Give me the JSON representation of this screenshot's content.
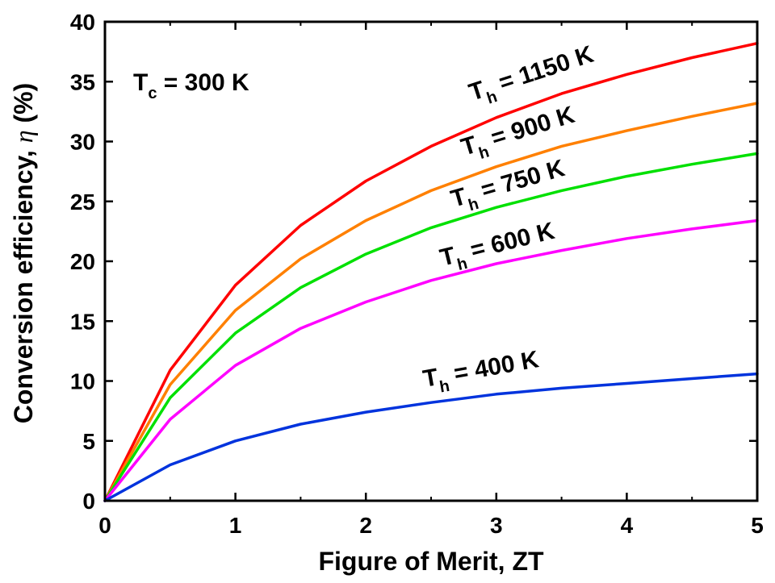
{
  "chart_data": {
    "type": "line",
    "title": "",
    "xlabel": "Figure of Merit, ZT",
    "ylabel_text": "Conversion efficiency, ",
    "ylabel_symbol": "η",
    "ylabel_unit": " (%)",
    "xlim": [
      0,
      5
    ],
    "ylim": [
      0,
      40
    ],
    "xticks": [
      0,
      1,
      2,
      3,
      4,
      5
    ],
    "yticks": [
      0,
      5,
      10,
      15,
      20,
      25,
      30,
      35,
      40
    ],
    "xtick_labels": [
      "0",
      "1",
      "2",
      "3",
      "4",
      "5"
    ],
    "ytick_labels": [
      "0",
      "5",
      "10",
      "15",
      "20",
      "25",
      "30",
      "35",
      "40"
    ],
    "grid": false,
    "legend": "none",
    "x": [
      0,
      0.5,
      1,
      1.5,
      2,
      2.5,
      3,
      3.5,
      4,
      4.5,
      5
    ],
    "series": [
      {
        "label_T": "T",
        "label_sub": "h",
        "label_rest": " = 1150 K",
        "color": "#ff0000",
        "values": [
          0,
          10.9,
          18.0,
          23.0,
          26.7,
          29.6,
          32.0,
          34.0,
          35.6,
          37.0,
          38.2
        ]
      },
      {
        "label_T": "T",
        "label_sub": "h",
        "label_rest": " = 900 K",
        "color": "#ff8000",
        "values": [
          0,
          9.7,
          15.9,
          20.2,
          23.4,
          25.9,
          27.9,
          29.6,
          30.9,
          32.1,
          33.2
        ]
      },
      {
        "label_T": "T",
        "label_sub": "h",
        "label_rest": " = 750 K",
        "color": "#00e000",
        "values": [
          0,
          8.6,
          14.0,
          17.8,
          20.6,
          22.8,
          24.5,
          25.9,
          27.1,
          28.1,
          29.0
        ]
      },
      {
        "label_T": "T",
        "label_sub": "h",
        "label_rest": " = 600 K",
        "color": "#ff00ff",
        "values": [
          0,
          6.8,
          11.3,
          14.4,
          16.6,
          18.4,
          19.8,
          20.9,
          21.9,
          22.7,
          23.4
        ]
      },
      {
        "label_T": "T",
        "label_sub": "h",
        "label_rest": " = 400 K",
        "color": "#0033dd",
        "values": [
          0,
          3.0,
          5.0,
          6.4,
          7.4,
          8.2,
          8.9,
          9.4,
          9.8,
          10.2,
          10.6
        ]
      }
    ],
    "annotation": {
      "T": "T",
      "sub": "c",
      "rest": " = 300 K"
    }
  }
}
